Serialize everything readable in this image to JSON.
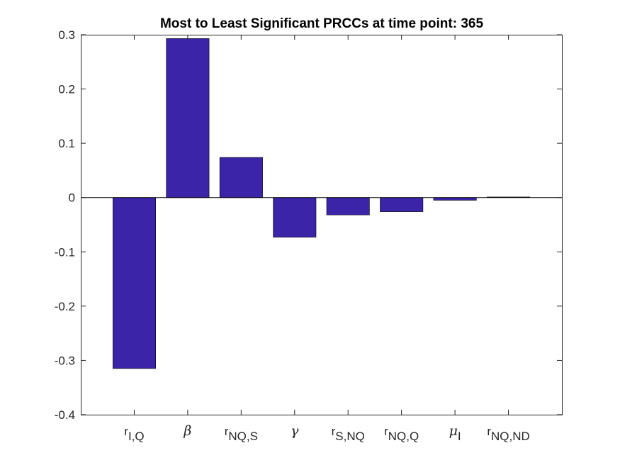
{
  "chart_data": {
    "type": "bar",
    "title": "Most to Least Significant PRCCs at time point: 365",
    "xlabel": "",
    "ylabel": "",
    "ylim": [
      -0.4,
      0.3
    ],
    "yticks": [
      -0.4,
      -0.3,
      -0.2,
      -0.1,
      0,
      0.1,
      0.2,
      0.3
    ],
    "ytick_labels": [
      "-0.4",
      "-0.3",
      "-0.2",
      "-0.1",
      "0",
      "0.1",
      "0.2",
      "0.3"
    ],
    "categories": [
      "r_{I,Q}",
      "β",
      "r_{NQ,S}",
      "γ",
      "r_{S,NQ}",
      "r_{NQ,Q}",
      "μ_I",
      "r_{NQ,ND}"
    ],
    "category_labels": [
      {
        "base": "r",
        "sub": "I,Q",
        "greek": false
      },
      {
        "base": "β",
        "sub": "",
        "greek": true
      },
      {
        "base": "r",
        "sub": "NQ,S",
        "greek": false
      },
      {
        "base": "γ",
        "sub": "",
        "greek": true
      },
      {
        "base": "r",
        "sub": "S,NQ",
        "greek": false
      },
      {
        "base": "r",
        "sub": "NQ,Q",
        "greek": false
      },
      {
        "base": "μ",
        "sub": "I",
        "greek": true
      },
      {
        "base": "r",
        "sub": "NQ,ND",
        "greek": false
      }
    ],
    "values": [
      -0.315,
      0.293,
      0.074,
      -0.073,
      -0.032,
      -0.026,
      -0.005,
      0.001
    ],
    "bar_color": "#3b24a8",
    "grid": false,
    "legend": "none"
  }
}
